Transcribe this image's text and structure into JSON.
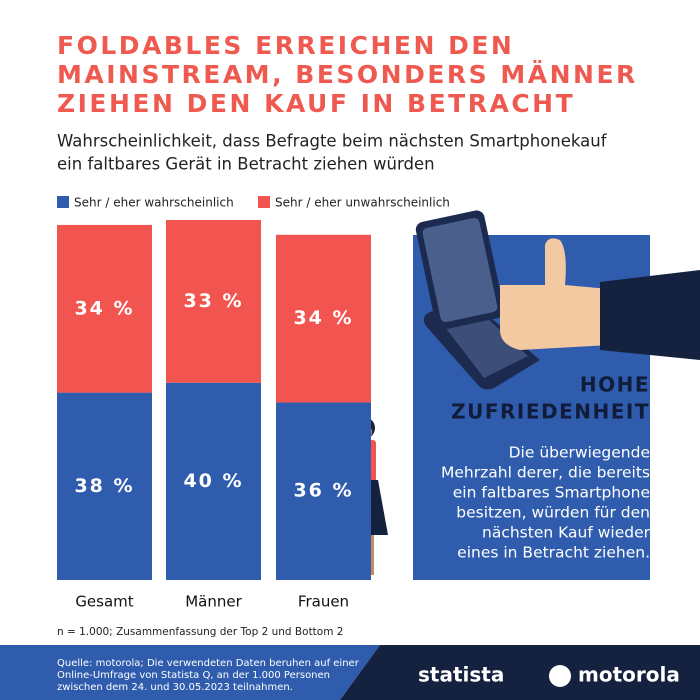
{
  "chart_data": {
    "type": "bar",
    "stacked": true,
    "title": [
      "FOLDABLES ERREICHEN DEN",
      "MAINSTREAM, BESONDERS MÄNNER",
      "ZIEHEN DEN KAUF IN BETRACHT"
    ],
    "subtitle": [
      "Wahrscheinlichkeit, dass Befragte beim nächsten Smartphonekauf",
      "ein faltbares Gerät in Betracht ziehen würden"
    ],
    "categories": [
      "Gesamt",
      "Männer",
      "Frauen"
    ],
    "series": [
      {
        "name": "Sehr / eher wahrscheinlich",
        "color": "#2f5cad",
        "values": [
          38,
          40,
          36
        ],
        "value_labels": [
          "38 %",
          "40 %",
          "36 %"
        ]
      },
      {
        "name": "Sehr / eher unwahrscheinlich",
        "color": "#f2554f",
        "values": [
          34,
          33,
          34
        ],
        "value_labels": [
          "34 %",
          "33 %",
          "34 %"
        ]
      }
    ],
    "note": "n = 1.000; Zusammenfassung der Top 2 und Bottom 2"
  },
  "panel": {
    "heading": [
      "HOHE",
      "ZUFRIEDENHEIT"
    ],
    "body": [
      "Die überwiegende",
      "Mehrzahl derer, die bereits",
      "ein faltbares Smartphone",
      "besitzen, würden für den",
      "nächsten Kauf wieder",
      "eines in Betracht ziehen."
    ]
  },
  "footer": {
    "source": [
      "Quelle: motorola; Die verwendeten Daten beruhen auf einer",
      "Online-Umfrage von Statista Q, an der 1.000 Personen",
      "zwischen dem 24. und 30.05.2023 teilnahmen."
    ],
    "logos": [
      "statista",
      "motorola"
    ]
  }
}
